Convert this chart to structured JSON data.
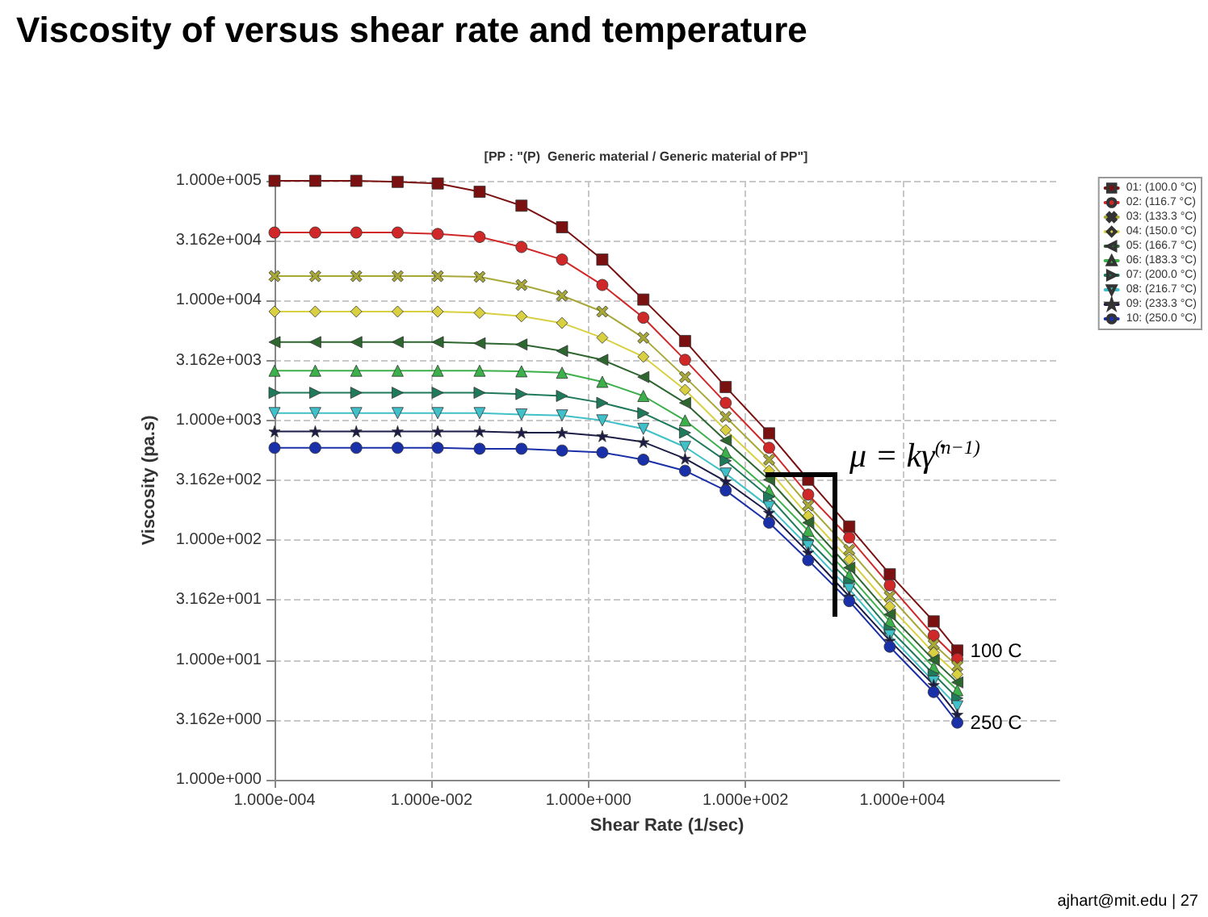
{
  "chart_data": {
    "type": "line",
    "title": "Viscosity of versus shear rate and temperature",
    "subtitle": "[PP : \"(P)  Generic material / Generic material of PP\"]",
    "xlabel": "Shear Rate (1/sec)",
    "ylabel": "Viscosity (pa.s)",
    "x": [
      0.0001,
      0.00033,
      0.0011,
      0.0037,
      0.012,
      0.041,
      0.14,
      0.46,
      1.5,
      5,
      17,
      56,
      200,
      630,
      2100,
      6900,
      25000,
      50000
    ],
    "log": "xy",
    "grid": true,
    "legend": "top right",
    "line_style": "solid",
    "xlim": [
      0.0001,
      1000000
    ],
    "xticks": [
      {
        "value": 0.0001,
        "label": "1.000e-004"
      },
      {
        "value": 0.01,
        "label": "1.000e-002"
      },
      {
        "value": 1,
        "label": "1.000e+000"
      },
      {
        "value": 100,
        "label": "1.000e+002"
      },
      {
        "value": 10000,
        "label": "1.000e+004"
      }
    ],
    "ylim": [
      1,
      100000
    ],
    "yticks": [
      {
        "value": 1,
        "label": "1.000e+000"
      },
      {
        "value": 3.162,
        "label": "3.162e+000"
      },
      {
        "value": 10,
        "label": "1.000e+001"
      },
      {
        "value": 31.62,
        "label": "3.162e+001"
      },
      {
        "value": 100,
        "label": "1.000e+002"
      },
      {
        "value": 316.2,
        "label": "3.162e+002"
      },
      {
        "value": 1000,
        "label": "1.000e+003"
      },
      {
        "value": 3162,
        "label": "3.162e+003"
      },
      {
        "value": 10000,
        "label": "1.000e+004"
      },
      {
        "value": 31620,
        "label": "3.162e+004"
      },
      {
        "value": 100000,
        "label": "1.000e+005"
      }
    ],
    "series": [
      {
        "name": "01: (100.0 °C)",
        "color": "#7a1010",
        "marker": "square",
        "values": [
          100000,
          100000,
          100000,
          98000,
          95000,
          81000,
          62000,
          41000,
          22000,
          10200,
          4600,
          1900,
          780,
          320,
          130,
          52,
          21,
          12
        ]
      },
      {
        "name": "02: (116.7 °C)",
        "color": "#d02828",
        "marker": "circle",
        "values": [
          37000,
          37000,
          37000,
          37000,
          36000,
          34000,
          28000,
          22000,
          13500,
          7200,
          3200,
          1400,
          590,
          240,
          105,
          42,
          16,
          10.2
        ]
      },
      {
        "name": "03: (133.3 °C)",
        "color": "#a8a838",
        "marker": "cross",
        "values": [
          16000,
          16000,
          16000,
          16000,
          16000,
          15800,
          13500,
          11000,
          8100,
          4900,
          2300,
          1070,
          470,
          195,
          83,
          34,
          13.5,
          8.9
        ]
      },
      {
        "name": "04: (150.0 °C)",
        "color": "#d8d040",
        "marker": "diamond",
        "values": [
          8100,
          8100,
          8100,
          8100,
          8100,
          7900,
          7400,
          6500,
          4900,
          3400,
          1800,
          830,
          380,
          160,
          69,
          28,
          11.5,
          7.6
        ]
      },
      {
        "name": "05: (166.7 °C)",
        "color": "#2e6630",
        "marker": "triangle-left",
        "values": [
          4500,
          4500,
          4500,
          4500,
          4500,
          4400,
          4300,
          3800,
          3200,
          2300,
          1400,
          680,
          320,
          140,
          59,
          24,
          10,
          6.5
        ]
      },
      {
        "name": "06: (183.3 °C)",
        "color": "#3cb04a",
        "marker": "triangle",
        "values": [
          2600,
          2600,
          2600,
          2600,
          2600,
          2600,
          2570,
          2500,
          2100,
          1600,
          1000,
          540,
          260,
          120,
          51,
          21,
          8.7,
          5.6
        ]
      },
      {
        "name": "07: (200.0 °C)",
        "color": "#1f7a5c",
        "marker": "triangle-right",
        "values": [
          1700,
          1700,
          1700,
          1700,
          1700,
          1700,
          1660,
          1600,
          1400,
          1150,
          790,
          460,
          230,
          100,
          45,
          18,
          7.6,
          4.8
        ]
      },
      {
        "name": "08: (216.7 °C)",
        "color": "#40c0c8",
        "marker": "triangle-down",
        "values": [
          1150,
          1150,
          1150,
          1150,
          1150,
          1150,
          1120,
          1100,
          1000,
          850,
          600,
          360,
          190,
          89,
          39,
          16,
          6.6,
          4.1
        ]
      },
      {
        "name": "09: (233.3 °C)",
        "color": "#1c1c48",
        "marker": "star",
        "values": [
          810,
          810,
          810,
          810,
          810,
          810,
          790,
          790,
          740,
          660,
          480,
          310,
          170,
          79,
          34,
          14.5,
          6.2,
          3.5
        ]
      },
      {
        "name": "10: (250.0 °C)",
        "color": "#1a30a8",
        "marker": "circle",
        "values": [
          590,
          590,
          590,
          590,
          590,
          580,
          580,
          560,
          540,
          470,
          380,
          260,
          140,
          68,
          31,
          12.9,
          5.4,
          3.0
        ]
      }
    ],
    "annotations": [
      "μ = kγ̇$^{(n−1)}$",
      "ajhart@mit.edu | 27",
      {
        "text": "100 C",
        "x": 50000,
        "y": 12
      },
      {
        "text": "250 C",
        "x": 50000,
        "y": 3.0
      }
    ]
  }
}
